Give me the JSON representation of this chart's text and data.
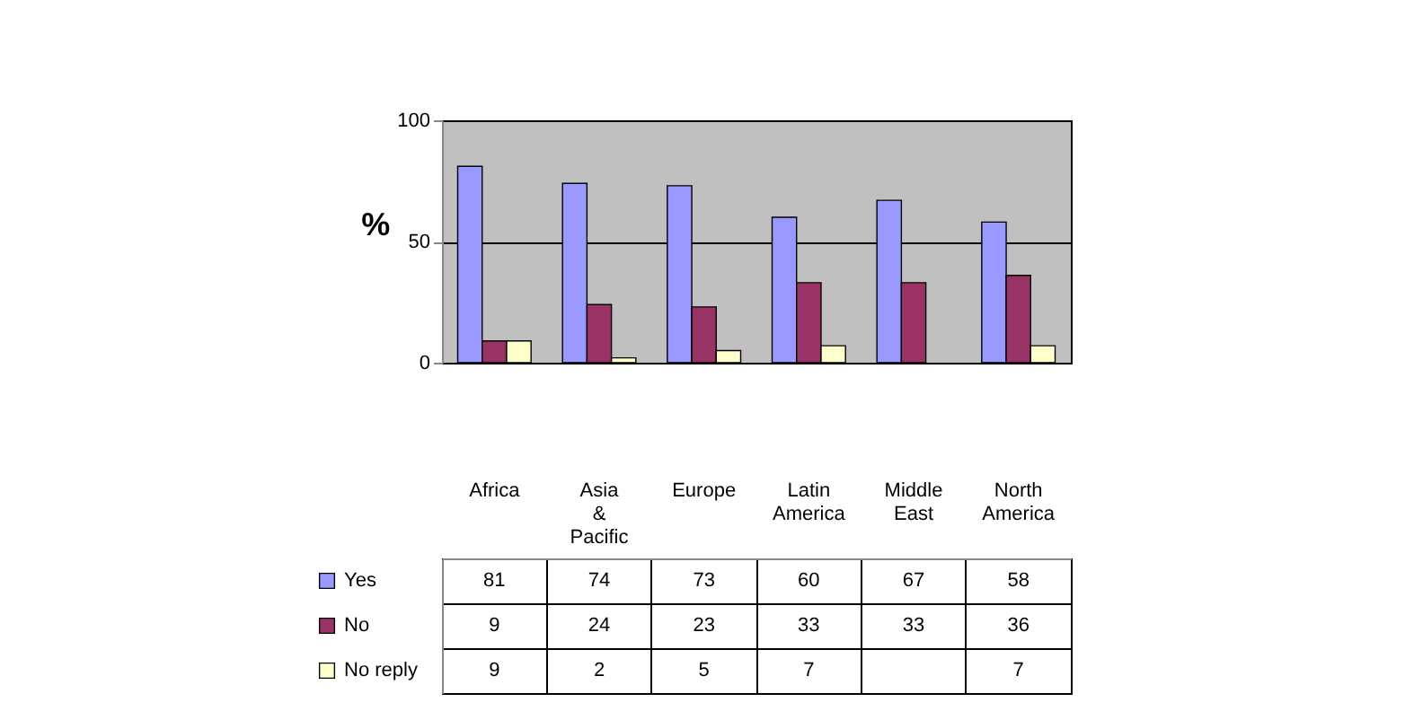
{
  "chart_data": {
    "type": "bar",
    "ylabel": "%",
    "categories": [
      "Africa",
      "Asia & Pacific",
      "Europe",
      "Latin America",
      "Middle East",
      "North America"
    ],
    "series": [
      {
        "name": "Yes",
        "color": "#9999ff",
        "values": [
          81,
          74,
          73,
          60,
          67,
          58
        ]
      },
      {
        "name": "No",
        "color": "#993366",
        "values": [
          9,
          24,
          23,
          33,
          33,
          36
        ]
      },
      {
        "name": "No reply",
        "color": "#ffffcc",
        "values": [
          9,
          2,
          5,
          7,
          null,
          7
        ]
      }
    ],
    "ylim": [
      0,
      100
    ],
    "yticks": [
      0,
      50,
      100
    ],
    "grid": "y",
    "legend": "bottom left",
    "data_labels": true
  }
}
